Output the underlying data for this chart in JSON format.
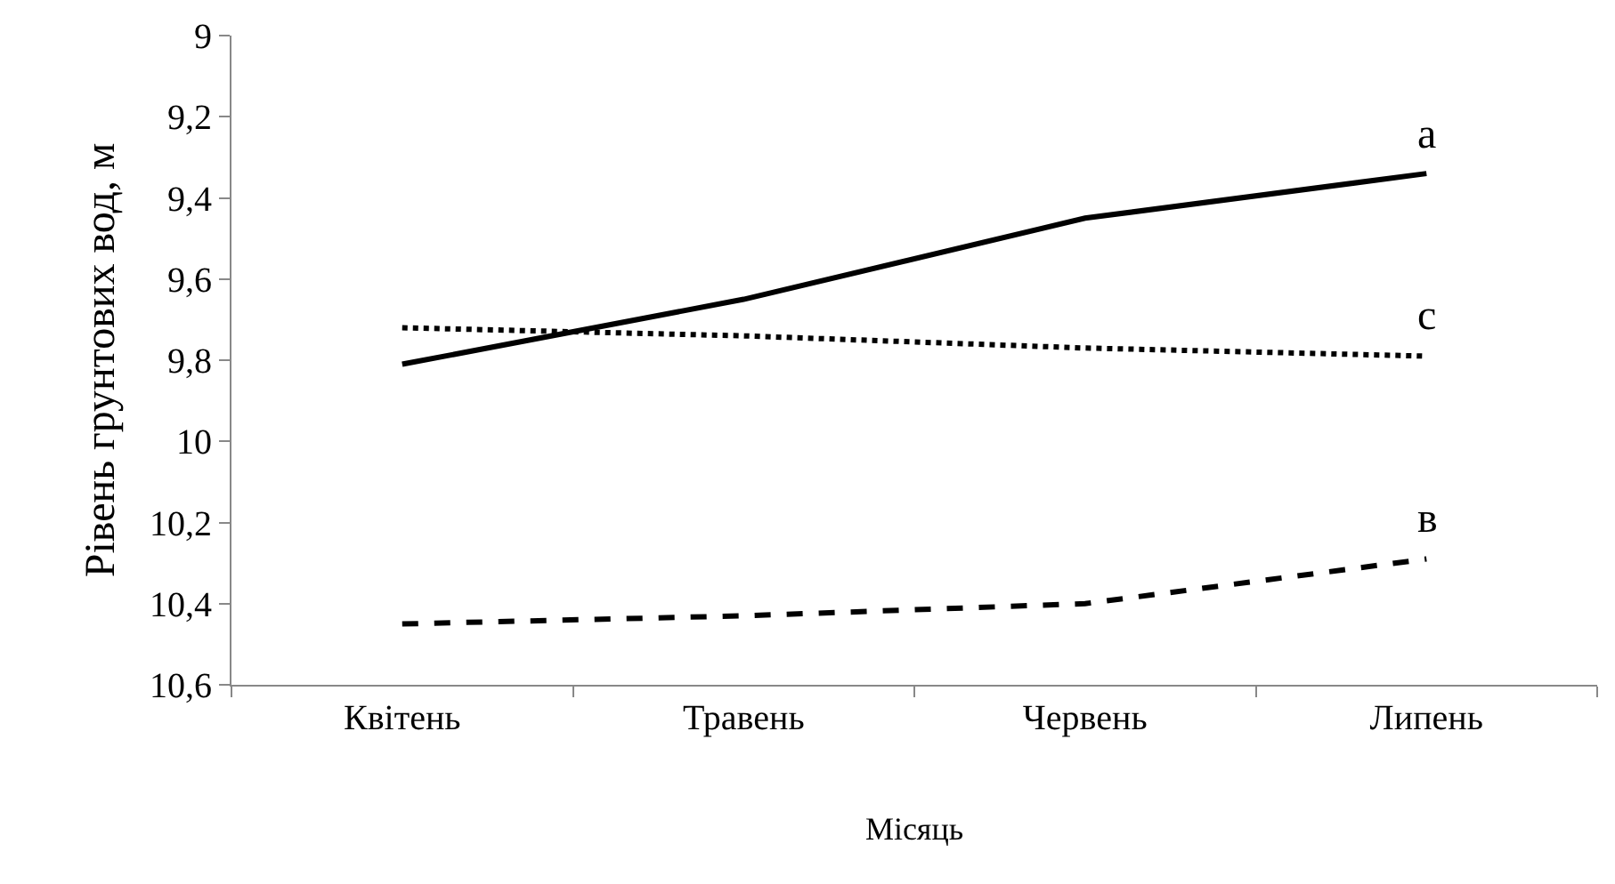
{
  "chart_data": {
    "type": "line",
    "xlabel": "Місяць",
    "ylabel": "Рівень грунтових вод, м",
    "categories": [
      "Квітень",
      "Травень",
      "Червень",
      "Липень"
    ],
    "series": [
      {
        "name": "a",
        "color": "#000000",
        "line_style": "solid",
        "values": [
          9.81,
          9.65,
          9.45,
          9.34
        ]
      },
      {
        "name": "c",
        "color": "#000000",
        "line_style": "dotted",
        "values": [
          9.72,
          9.74,
          9.77,
          9.79
        ]
      },
      {
        "name": "в",
        "color": "#000000",
        "line_style": "dashed",
        "values": [
          10.45,
          10.43,
          10.4,
          10.29
        ]
      }
    ],
    "ylim": [
      10.6,
      9
    ],
    "yticks": [
      9,
      {
        "value": 9.2,
        "label": "9,2"
      },
      {
        "value": 9.4,
        "label": "9,4"
      },
      {
        "value": 9.6,
        "label": "9,6"
      },
      {
        "value": 9.8,
        "label": "9,8"
      },
      10,
      {
        "value": 10.2,
        "label": "10,2"
      },
      {
        "value": 10.4,
        "label": "10,4"
      },
      {
        "value": 10.6,
        "label": "10,6"
      }
    ],
    "grid": false,
    "legend": false,
    "marker": "none"
  }
}
